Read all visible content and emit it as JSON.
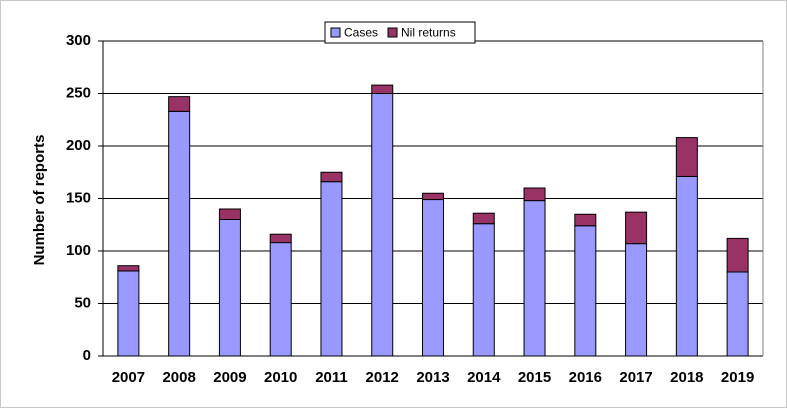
{
  "chart_data": {
    "type": "stacked_bar",
    "y_label": "Number of reports",
    "categories": [
      "2007",
      "2008",
      "2009",
      "2010",
      "2011",
      "2012",
      "2013",
      "2014",
      "2015",
      "2016",
      "2017",
      "2018",
      "2019"
    ],
    "series": [
      {
        "name": "Cases",
        "color": "#9999ff",
        "values": [
          81,
          233,
          130,
          108,
          166,
          250,
          149,
          126,
          148,
          124,
          107,
          171,
          80
        ]
      },
      {
        "name": "Nil returns",
        "color": "#993366",
        "values": [
          5,
          14,
          10,
          8,
          9,
          8,
          6,
          10,
          12,
          11,
          30,
          37,
          32
        ]
      }
    ],
    "ylim": [
      0,
      300
    ],
    "yticks": [
      0,
      50,
      100,
      150,
      200,
      250,
      300
    ],
    "grid": true,
    "legend": "top"
  }
}
